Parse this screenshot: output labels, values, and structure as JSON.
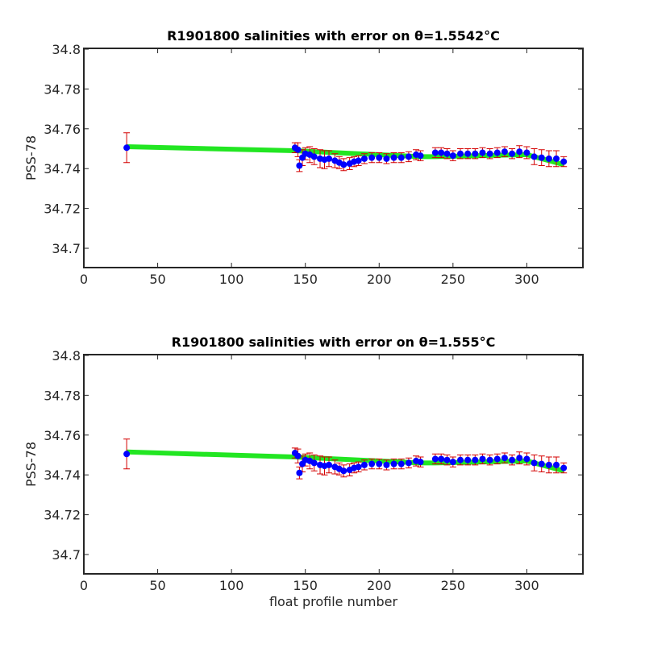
{
  "chart_data": [
    {
      "type": "errorbar",
      "title": "R1901800 salinities with error on θ=1.5542°C",
      "ylabel": "PSS-78",
      "x": [
        29,
        143,
        145,
        146,
        148,
        150,
        153,
        156,
        160,
        163,
        166,
        170,
        173,
        176,
        180,
        183,
        186,
        190,
        195,
        200,
        205,
        210,
        215,
        220,
        225,
        228,
        238,
        242,
        246,
        250,
        255,
        260,
        265,
        270,
        275,
        280,
        285,
        290,
        295,
        300,
        305,
        310,
        315,
        320,
        325
      ],
      "values": [
        34.7505,
        34.7505,
        34.7495,
        34.7415,
        34.7455,
        34.7475,
        34.747,
        34.746,
        34.745,
        34.7445,
        34.745,
        34.744,
        34.743,
        34.742,
        34.7425,
        34.7435,
        34.744,
        34.745,
        34.7455,
        34.7455,
        34.745,
        34.7455,
        34.7455,
        34.746,
        34.747,
        34.7465,
        34.748,
        34.748,
        34.7475,
        34.7465,
        34.7475,
        34.7475,
        34.7475,
        34.748,
        34.7475,
        34.748,
        34.7485,
        34.7475,
        34.7485,
        34.748,
        34.746,
        34.7455,
        34.745,
        34.745,
        34.7435
      ],
      "errors": [
        0.0075,
        0.0025,
        0.0035,
        0.003,
        0.004,
        0.003,
        0.004,
        0.004,
        0.0045,
        0.0045,
        0.004,
        0.0035,
        0.003,
        0.003,
        0.003,
        0.0025,
        0.0025,
        0.0025,
        0.0025,
        0.0025,
        0.0025,
        0.0025,
        0.0025,
        0.0025,
        0.0025,
        0.0025,
        0.0025,
        0.0025,
        0.0025,
        0.0025,
        0.0025,
        0.0025,
        0.0025,
        0.0025,
        0.0025,
        0.0025,
        0.0025,
        0.0025,
        0.003,
        0.003,
        0.004,
        0.004,
        0.004,
        0.004,
        0.0025
      ],
      "color": "#0000ff",
      "error_color": "#d40000",
      "fit": {
        "x": [
          29,
          143,
          228,
          238,
          300,
          325
        ],
        "values": [
          34.751,
          34.749,
          34.746,
          34.746,
          34.747,
          34.742
        ],
        "color": "#22e622"
      },
      "xlim": [
        0,
        338
      ],
      "ylim": [
        34.6903,
        34.8004
      ],
      "xticks": [
        0,
        50,
        100,
        150,
        200,
        250,
        300
      ],
      "yticks": [
        34.7,
        34.72,
        34.74,
        34.76,
        34.78,
        34.8
      ]
    },
    {
      "type": "errorbar",
      "title": "R1901800 salinities with error on θ=1.555°C",
      "ylabel": "PSS-78",
      "xlabel": "float profile number",
      "x": [
        29,
        143,
        145,
        146,
        148,
        150,
        153,
        156,
        160,
        163,
        166,
        170,
        173,
        176,
        180,
        183,
        186,
        190,
        195,
        200,
        205,
        210,
        215,
        220,
        225,
        228,
        238,
        242,
        246,
        250,
        255,
        260,
        265,
        270,
        275,
        280,
        285,
        290,
        295,
        300,
        305,
        310,
        315,
        320,
        325
      ],
      "values": [
        34.7505,
        34.751,
        34.7495,
        34.741,
        34.7455,
        34.7475,
        34.747,
        34.746,
        34.745,
        34.7445,
        34.745,
        34.744,
        34.743,
        34.742,
        34.7425,
        34.7435,
        34.744,
        34.745,
        34.7455,
        34.7455,
        34.745,
        34.7455,
        34.7455,
        34.746,
        34.747,
        34.7465,
        34.748,
        34.748,
        34.7475,
        34.7465,
        34.7475,
        34.7475,
        34.7475,
        34.748,
        34.7475,
        34.748,
        34.7485,
        34.7475,
        34.7485,
        34.748,
        34.746,
        34.7455,
        34.745,
        34.745,
        34.7435
      ],
      "errors": [
        0.0075,
        0.0025,
        0.0035,
        0.003,
        0.004,
        0.003,
        0.004,
        0.004,
        0.0045,
        0.0045,
        0.004,
        0.0035,
        0.003,
        0.003,
        0.003,
        0.0025,
        0.0025,
        0.0025,
        0.0025,
        0.0025,
        0.0025,
        0.0025,
        0.0025,
        0.0025,
        0.0025,
        0.0025,
        0.0025,
        0.0025,
        0.0025,
        0.0025,
        0.0025,
        0.0025,
        0.0025,
        0.0025,
        0.0025,
        0.0025,
        0.0025,
        0.0025,
        0.003,
        0.003,
        0.004,
        0.004,
        0.004,
        0.004,
        0.0025
      ],
      "color": "#0000ff",
      "error_color": "#d40000",
      "fit": {
        "x": [
          29,
          143,
          228,
          238,
          300,
          325
        ],
        "values": [
          34.7515,
          34.749,
          34.746,
          34.746,
          34.747,
          34.742
        ],
        "color": "#22e622"
      },
      "xlim": [
        0,
        338
      ],
      "ylim": [
        34.6903,
        34.8004
      ],
      "xticks": [
        0,
        50,
        100,
        150,
        200,
        250,
        300
      ],
      "yticks": [
        34.7,
        34.72,
        34.74,
        34.76,
        34.78,
        34.8
      ]
    }
  ]
}
